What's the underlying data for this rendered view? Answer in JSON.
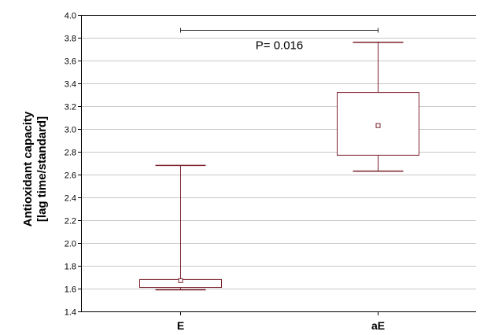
{
  "chart_data": {
    "type": "box",
    "ylabel": [
      "Antioxidant capacity",
      "[lag time/standard]"
    ],
    "ylim": [
      1.4,
      4.0
    ],
    "yticks": [
      "1.4",
      "1.6",
      "1.8",
      "2.0",
      "2.2",
      "2.4",
      "2.6",
      "2.8",
      "3.0",
      "3.2",
      "3.4",
      "3.6",
      "3.8",
      "4.0"
    ],
    "grid": true,
    "categories": [
      "E",
      "aE"
    ],
    "boxes": [
      {
        "category": "E",
        "min": 1.59,
        "q1": 1.61,
        "median": 1.67,
        "q3": 1.68,
        "max": 2.68
      },
      {
        "category": "aE",
        "min": 2.63,
        "q1": 2.77,
        "median": 3.03,
        "q3": 3.32,
        "max": 3.76
      }
    ],
    "annotation": {
      "text": "P= 0.016",
      "y": 3.87,
      "from": "E",
      "to": "aE"
    },
    "colors": {
      "box": "#7a1f2b",
      "grid": "#c8c8c8",
      "axis": "#000000"
    }
  }
}
